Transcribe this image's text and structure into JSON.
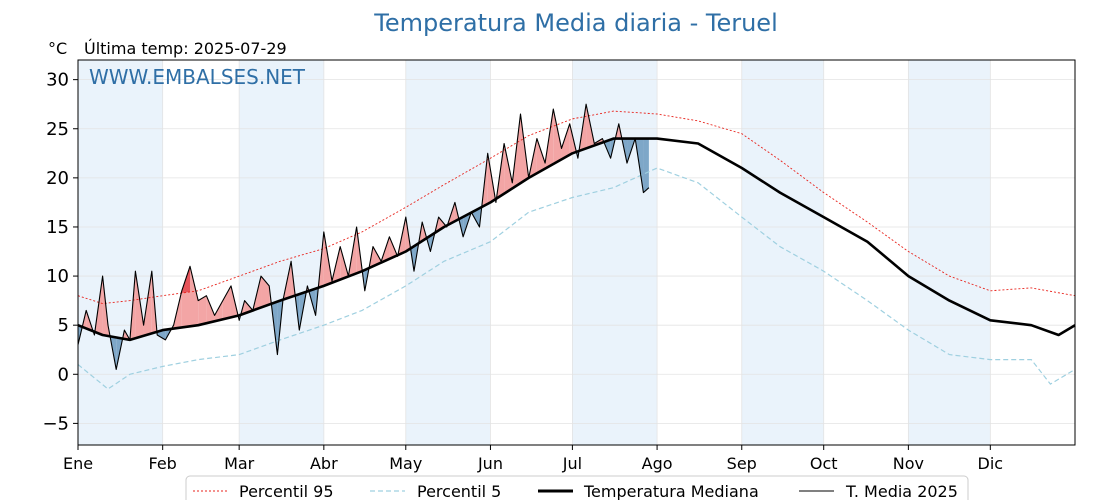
{
  "chart_data": {
    "type": "line",
    "title": "Temperatura Media diaria - Teruel",
    "unit": "°C",
    "subtitle": "Última temp: 2025-07-29",
    "watermark": "WWW.EMBALSES.NET",
    "ylim": [
      -7.2,
      32
    ],
    "yticks": [
      -5,
      0,
      5,
      10,
      15,
      20,
      25,
      30
    ],
    "ytick_labels": [
      "−5",
      "0",
      "5",
      "10",
      "15",
      "20",
      "25",
      "30"
    ],
    "xlim": [
      1,
      366
    ],
    "month_starts": [
      1,
      32,
      60,
      91,
      121,
      152,
      182,
      213,
      244,
      274,
      305,
      335
    ],
    "months": [
      "Ene",
      "Feb",
      "Mar",
      "Abr",
      "May",
      "Jun",
      "Jul",
      "Ago",
      "Sep",
      "Oct",
      "Nov",
      "Dic"
    ],
    "grid": true,
    "legend_position": "bottom-center",
    "colors": {
      "p95": "#e8231c",
      "p5": "#9fd0e0",
      "median": "#000000",
      "current": "#000000",
      "above_fill": "#f3a5a5",
      "above_strong": "#e6545a",
      "below_fill": "#7ea7c8",
      "below_strong": "#1f4f80",
      "month_band": "#eaf3fb"
    },
    "series": [
      {
        "name": "Percentil 95",
        "x": [
          1,
          10,
          20,
          32,
          45,
          60,
          75,
          91,
          105,
          121,
          135,
          152,
          166,
          182,
          197,
          213,
          228,
          244,
          258,
          274,
          290,
          305,
          320,
          335,
          350,
          366
        ],
        "values": [
          8,
          7.2,
          7.5,
          8,
          8.5,
          10,
          11.5,
          12.8,
          14.5,
          17,
          19.3,
          22,
          24.3,
          26,
          26.8,
          26.5,
          25.8,
          24.5,
          21.8,
          18.5,
          15.5,
          12.5,
          10,
          8.5,
          8.8,
          8
        ]
      },
      {
        "name": "Percentil 5",
        "x": [
          1,
          12,
          20,
          32,
          45,
          60,
          75,
          91,
          105,
          121,
          135,
          152,
          166,
          182,
          197,
          213,
          228,
          244,
          258,
          274,
          290,
          305,
          320,
          335,
          350,
          357,
          366
        ],
        "values": [
          1,
          -1.5,
          0,
          0.8,
          1.5,
          2,
          3.5,
          5,
          6.5,
          9,
          11.5,
          13.5,
          16.5,
          18,
          19,
          21,
          19.5,
          16,
          13,
          10.5,
          7.5,
          4.5,
          2,
          1.5,
          1.5,
          -1,
          0.5
        ]
      },
      {
        "name": "Temperatura Mediana",
        "x": [
          1,
          10,
          20,
          32,
          45,
          60,
          75,
          91,
          105,
          121,
          135,
          152,
          166,
          182,
          197,
          213,
          228,
          244,
          258,
          274,
          290,
          305,
          320,
          335,
          350,
          360,
          366
        ],
        "values": [
          5,
          4,
          3.5,
          4.5,
          5,
          6,
          7.5,
          9,
          10.5,
          12.5,
          15,
          17.5,
          20,
          22.5,
          24,
          24,
          23.5,
          21,
          18.5,
          16,
          13.5,
          10,
          7.5,
          5.5,
          5,
          4,
          5
        ]
      },
      {
        "name": "T. Media 2025",
        "x": [
          1,
          4,
          7,
          10,
          12,
          15,
          18,
          20,
          22,
          25,
          28,
          30,
          33,
          36,
          39,
          42,
          45,
          48,
          51,
          54,
          57,
          60,
          62,
          65,
          68,
          71,
          74,
          76,
          79,
          82,
          85,
          88,
          91,
          94,
          97,
          100,
          103,
          106,
          109,
          112,
          115,
          118,
          121,
          124,
          127,
          130,
          133,
          136,
          139,
          142,
          145,
          148,
          151,
          154,
          157,
          160,
          163,
          166,
          169,
          172,
          175,
          178,
          181,
          184,
          187,
          190,
          193,
          196,
          199,
          202,
          205,
          208,
          210
        ],
        "values": [
          3,
          6.5,
          4,
          10,
          5,
          0.5,
          4.5,
          3.5,
          10.5,
          5,
          10.5,
          4,
          3.5,
          5,
          8.5,
          11,
          7.5,
          8,
          6,
          7.5,
          9,
          5.5,
          7.5,
          6.5,
          10,
          9,
          2,
          7.5,
          11.5,
          4.5,
          9,
          6,
          14.5,
          9.5,
          13,
          10,
          15,
          8.5,
          13,
          11.5,
          14,
          12,
          16,
          10.5,
          15.5,
          12.5,
          16,
          15,
          17.5,
          14,
          16.5,
          15,
          22.5,
          17.5,
          23.5,
          19.5,
          26.5,
          20,
          24,
          21.5,
          27,
          23,
          25.5,
          22,
          27.5,
          23.5,
          24,
          22,
          25.5,
          21.5,
          24,
          18.5,
          19
        ]
      }
    ],
    "legend": [
      "Percentil 95",
      "Percentil 5",
      "Temperatura Mediana",
      "T. Media 2025"
    ]
  }
}
